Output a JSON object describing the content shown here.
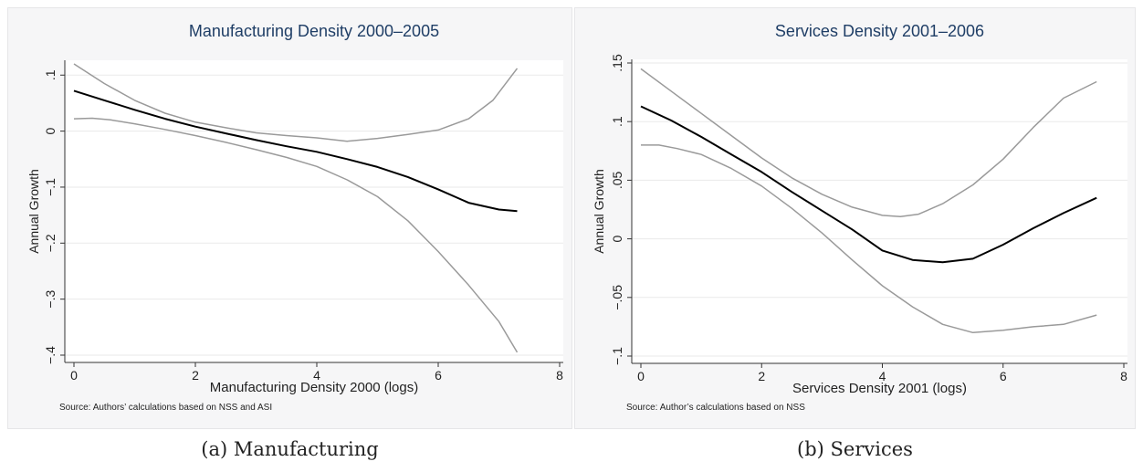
{
  "captions": [
    "(a) Manufacturing",
    "(b) Services"
  ],
  "chart_data": [
    {
      "type": "line",
      "title": "Manufacturing Density 2000–2005",
      "xlabel": "Manufacturing Density 2000 (logs)",
      "ylabel": "Annual Growth",
      "note": "Source: Authors’ calculations based on NSS and ASI",
      "xlim": [
        0,
        8
      ],
      "ylim": [
        -0.4,
        0.12
      ],
      "xticks": [
        0,
        2,
        4,
        6,
        8
      ],
      "xtick_labels": [
        "0",
        "2",
        "4",
        "6",
        "8"
      ],
      "yticks": [
        0.1,
        0,
        -0.1,
        -0.2,
        -0.3,
        -0.4
      ],
      "ytick_labels": [
        ".1",
        "0",
        "−.1",
        "−.2",
        "−.3",
        "−.4"
      ],
      "grid": true,
      "legend": "none",
      "series": [
        {
          "role": "estimate",
          "color": "#000000",
          "x": [
            0,
            0.5,
            1,
            1.5,
            2,
            2.5,
            3,
            3.5,
            4,
            4.5,
            5,
            5.5,
            6,
            6.5,
            7,
            7.3
          ],
          "y": [
            0.072,
            0.055,
            0.038,
            0.022,
            0.008,
            -0.004,
            -0.016,
            -0.027,
            -0.037,
            -0.05,
            -0.064,
            -0.082,
            -0.104,
            -0.128,
            -0.14,
            -0.143
          ]
        },
        {
          "role": "upper band",
          "color": "#9a9a9a",
          "x": [
            0,
            0.5,
            1,
            1.5,
            2,
            2.5,
            3,
            3.5,
            4,
            4.5,
            5,
            5.5,
            6,
            6.5,
            6.9,
            7.3
          ],
          "y": [
            0.12,
            0.085,
            0.055,
            0.032,
            0.016,
            0.006,
            -0.003,
            -0.008,
            -0.012,
            -0.018,
            -0.013,
            -0.006,
            0.002,
            0.022,
            0.055,
            0.112
          ]
        },
        {
          "role": "lower band",
          "color": "#9a9a9a",
          "x": [
            0,
            0.3,
            0.6,
            1,
            1.5,
            2,
            2.5,
            3,
            3.5,
            4,
            4.5,
            5,
            5.5,
            6,
            6.5,
            7,
            7.3
          ],
          "y": [
            0.022,
            0.023,
            0.02,
            0.013,
            0.003,
            -0.008,
            -0.02,
            -0.033,
            -0.047,
            -0.063,
            -0.087,
            -0.117,
            -0.16,
            -0.215,
            -0.275,
            -0.34,
            -0.395
          ]
        }
      ]
    },
    {
      "type": "line",
      "title": "Services Density 2001–2006",
      "xlabel": "Services Density 2001 (logs)",
      "ylabel": "Annual Growth",
      "note": "Source: Author’s calculations based on NSS",
      "xlim": [
        0,
        8
      ],
      "ylim": [
        -0.1,
        0.15
      ],
      "xticks": [
        0,
        2,
        4,
        6,
        8
      ],
      "xtick_labels": [
        "0",
        "2",
        "4",
        "6",
        "8"
      ],
      "yticks": [
        0.15,
        0.1,
        0.05,
        0,
        -0.05,
        -0.1
      ],
      "ytick_labels": [
        ".15",
        ".1",
        ".05",
        "0",
        "−.05",
        "−.1"
      ],
      "grid": true,
      "legend": "none",
      "series": [
        {
          "role": "estimate",
          "color": "#000000",
          "x": [
            0,
            0.5,
            1,
            1.5,
            2,
            2.5,
            3,
            3.5,
            4,
            4.5,
            5,
            5.5,
            6,
            6.5,
            7,
            7.55
          ],
          "y": [
            0.113,
            0.101,
            0.087,
            0.072,
            0.057,
            0.04,
            0.024,
            0.008,
            -0.01,
            -0.018,
            -0.02,
            -0.017,
            -0.005,
            0.009,
            0.022,
            0.035
          ]
        },
        {
          "role": "upper band",
          "color": "#9a9a9a",
          "x": [
            0,
            0.5,
            1,
            1.5,
            2,
            2.5,
            3,
            3.5,
            4,
            4.3,
            4.6,
            5,
            5.5,
            6,
            6.5,
            7,
            7.55
          ],
          "y": [
            0.145,
            0.126,
            0.107,
            0.088,
            0.069,
            0.052,
            0.038,
            0.027,
            0.02,
            0.019,
            0.021,
            0.03,
            0.046,
            0.068,
            0.095,
            0.12,
            0.134
          ]
        },
        {
          "role": "lower band",
          "color": "#9a9a9a",
          "x": [
            0,
            0.3,
            0.6,
            1,
            1.5,
            2,
            2.5,
            3,
            3.5,
            4,
            4.5,
            5,
            5.5,
            6,
            6.5,
            7,
            7.55
          ],
          "y": [
            0.08,
            0.08,
            0.077,
            0.072,
            0.06,
            0.045,
            0.026,
            0.005,
            -0.018,
            -0.04,
            -0.058,
            -0.073,
            -0.08,
            -0.078,
            -0.075,
            -0.073,
            -0.065
          ]
        }
      ]
    }
  ]
}
